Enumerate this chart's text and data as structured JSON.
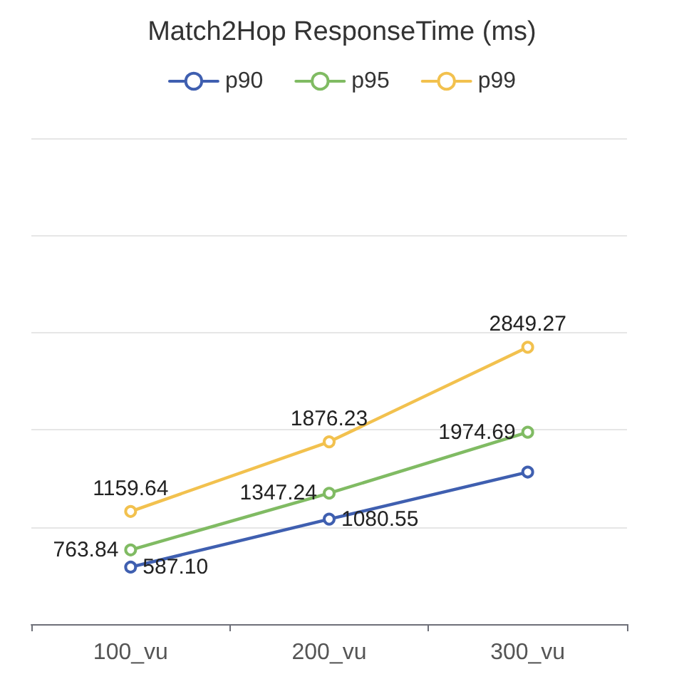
{
  "chart_data": {
    "type": "line",
    "title": "Match2Hop ResponseTime (ms)",
    "categories": [
      "100_vu",
      "200_vu",
      "300_vu"
    ],
    "series": [
      {
        "name": "p90",
        "color": "#3f5fb0",
        "values": [
          587.1,
          1080.55,
          1565
        ],
        "value_labels": [
          "587.10",
          "1080.55",
          null
        ]
      },
      {
        "name": "p95",
        "color": "#80bb63",
        "values": [
          763.84,
          1347.24,
          1974.69
        ],
        "value_labels": [
          "763.84",
          "1347.24",
          "1974.69"
        ]
      },
      {
        "name": "p99",
        "color": "#f2c14e",
        "values": [
          1159.64,
          1876.23,
          2849.27
        ],
        "value_labels": [
          "1159.64",
          "1876.23",
          "2849.27"
        ]
      }
    ],
    "ylim": [
      0,
      5000
    ],
    "yticks": [
      {
        "value": 0,
        "label": null
      },
      {
        "value": 1000,
        "label": null
      },
      {
        "value": 2000,
        "label": null
      },
      {
        "value": 3000,
        "label": null
      },
      {
        "value": 4000,
        "label": null
      },
      {
        "value": 5000,
        "label": null
      }
    ],
    "grid": "y",
    "legend": "top",
    "tick_labels": "x",
    "marker": "circle",
    "line_style": "solid"
  }
}
